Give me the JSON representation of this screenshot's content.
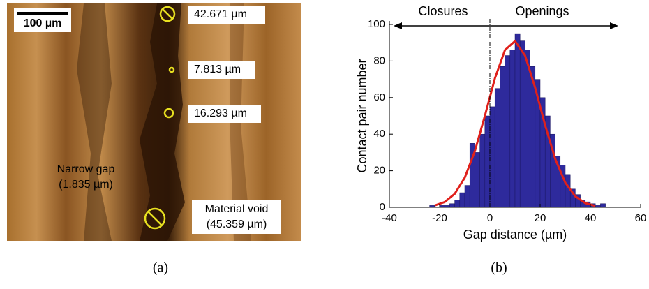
{
  "panel_a": {
    "scale_bar": "100 µm",
    "labels": [
      "42.671 µm",
      "7.813 µm",
      "16.293 µm",
      "Narrow gap",
      "(1.835 µm)",
      "Material void",
      "(45.359 µm)"
    ],
    "caption": "(a)"
  },
  "panel_b": {
    "caption": "(b)"
  },
  "chart_data": {
    "type": "histogram",
    "xlabel": "Gap distance (µm)",
    "ylabel": "Contact pair number",
    "annotations": [
      "Closures",
      "Openings"
    ],
    "divider_x": 0,
    "bins": [
      -24,
      -22,
      -20,
      -18,
      -16,
      -14,
      -12,
      -10,
      -8,
      -6,
      -4,
      -2,
      0,
      2,
      4,
      6,
      8,
      10,
      12,
      14,
      16,
      18,
      20,
      22,
      24,
      26,
      28,
      30,
      32,
      34,
      36,
      38,
      40,
      42,
      44,
      46
    ],
    "values": [
      1,
      0,
      1,
      1,
      2,
      4,
      8,
      12,
      35,
      30,
      40,
      50,
      55,
      65,
      77,
      83,
      86,
      95,
      91,
      86,
      77,
      70,
      60,
      50,
      40,
      28,
      23,
      18,
      10,
      7,
      4,
      3,
      2,
      1,
      2
    ],
    "color": "#2e2a9c",
    "fit": {
      "color": "#e0201b",
      "x": [
        -22,
        -18,
        -14,
        -10,
        -6,
        -2,
        2,
        6,
        10,
        14,
        18,
        22,
        26,
        30,
        34,
        38,
        42
      ],
      "values": [
        1.0,
        2.9,
        7.4,
        16.2,
        30.6,
        50,
        70.5,
        86,
        90.9,
        83,
        65.5,
        44.8,
        26.5,
        13.5,
        6,
        2.3,
        0.8
      ]
    },
    "xlim": [
      -40,
      60
    ],
    "xticks": [
      -40,
      -20,
      0,
      20,
      40,
      60
    ],
    "ylim": [
      0,
      100
    ],
    "yticks": [
      0,
      20,
      40,
      60,
      80,
      100
    ]
  }
}
